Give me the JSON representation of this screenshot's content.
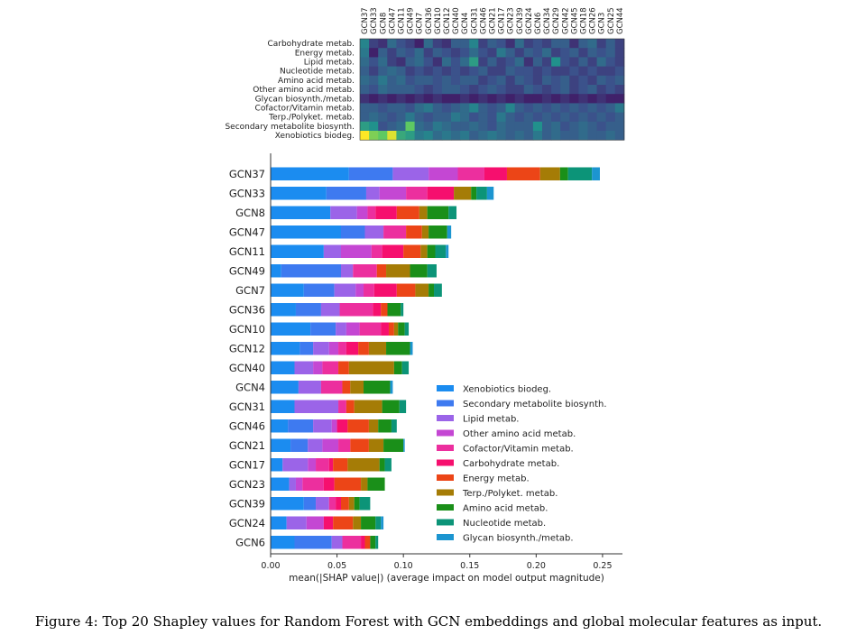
{
  "caption": "Figure 4: Top 20 Shapley values for Random Forest with GCN embeddings and global molecular features as input.",
  "heatmap": {
    "rows": [
      "Carbohydrate metab.",
      "Energy metab.",
      "Lipid metab.",
      "Nucleotide metab.",
      "Amino acid metab.",
      "Other amino acid metab.",
      "Glycan biosynth./metab.",
      "Cofactor/Vitamin metab.",
      "Terp./Polyket. metab.",
      "Secondary metabolite biosynth.",
      "Xenobiotics biodeg."
    ],
    "columns": [
      "GCN37",
      "GCN33",
      "GCN8",
      "GCN47",
      "GCN11",
      "GCN49",
      "GCN7",
      "GCN36",
      "GCN10",
      "GCN12",
      "GCN40",
      "GCN4",
      "GCN31",
      "GCN46",
      "GCN21",
      "GCN17",
      "GCN23",
      "GCN39",
      "GCN24",
      "GCN6",
      "GCN34",
      "GCN29",
      "GCN42",
      "GCN45",
      "GCN18",
      "GCN26",
      "GCN3",
      "GCN25",
      "GCN44"
    ],
    "colormap": [
      "#440154",
      "#3b528b",
      "#21918c",
      "#5ec962",
      "#fde725"
    ],
    "values": [
      [
        0.45,
        0.2,
        0.15,
        0.35,
        0.25,
        0.2,
        0.1,
        0.35,
        0.2,
        0.15,
        0.3,
        0.3,
        0.45,
        0.2,
        0.3,
        0.25,
        0.15,
        0.35,
        0.2,
        0.25,
        0.2,
        0.3,
        0.3,
        0.15,
        0.3,
        0.35,
        0.2,
        0.3,
        0.2
      ],
      [
        0.4,
        0.1,
        0.3,
        0.2,
        0.3,
        0.25,
        0.35,
        0.2,
        0.3,
        0.25,
        0.2,
        0.25,
        0.35,
        0.25,
        0.2,
        0.4,
        0.3,
        0.2,
        0.3,
        0.25,
        0.35,
        0.2,
        0.25,
        0.3,
        0.2,
        0.3,
        0.25,
        0.3,
        0.2
      ],
      [
        0.35,
        0.25,
        0.35,
        0.2,
        0.15,
        0.3,
        0.35,
        0.25,
        0.15,
        0.35,
        0.25,
        0.35,
        0.55,
        0.2,
        0.3,
        0.2,
        0.25,
        0.35,
        0.15,
        0.3,
        0.2,
        0.5,
        0.25,
        0.2,
        0.3,
        0.2,
        0.35,
        0.25,
        0.2
      ],
      [
        0.3,
        0.2,
        0.3,
        0.35,
        0.3,
        0.2,
        0.25,
        0.2,
        0.25,
        0.2,
        0.25,
        0.2,
        0.25,
        0.3,
        0.2,
        0.2,
        0.3,
        0.25,
        0.25,
        0.2,
        0.25,
        0.2,
        0.2,
        0.25,
        0.2,
        0.25,
        0.2,
        0.2,
        0.25
      ],
      [
        0.35,
        0.3,
        0.4,
        0.3,
        0.35,
        0.25,
        0.3,
        0.3,
        0.25,
        0.3,
        0.25,
        0.3,
        0.3,
        0.2,
        0.25,
        0.3,
        0.2,
        0.3,
        0.25,
        0.2,
        0.3,
        0.25,
        0.3,
        0.2,
        0.25,
        0.2,
        0.3,
        0.25,
        0.3
      ],
      [
        0.3,
        0.25,
        0.35,
        0.3,
        0.3,
        0.3,
        0.25,
        0.2,
        0.25,
        0.3,
        0.3,
        0.25,
        0.2,
        0.25,
        0.3,
        0.25,
        0.2,
        0.2,
        0.3,
        0.25,
        0.2,
        0.25,
        0.3,
        0.2,
        0.25,
        0.3,
        0.2,
        0.25,
        0.2
      ],
      [
        0.15,
        0.1,
        0.15,
        0.1,
        0.15,
        0.1,
        0.15,
        0.1,
        0.15,
        0.1,
        0.1,
        0.15,
        0.1,
        0.15,
        0.1,
        0.15,
        0.1,
        0.15,
        0.1,
        0.1,
        0.15,
        0.1,
        0.15,
        0.1,
        0.15,
        0.1,
        0.15,
        0.1,
        0.1
      ],
      [
        0.3,
        0.3,
        0.25,
        0.3,
        0.3,
        0.25,
        0.35,
        0.4,
        0.3,
        0.25,
        0.3,
        0.35,
        0.45,
        0.3,
        0.25,
        0.3,
        0.45,
        0.3,
        0.25,
        0.3,
        0.25,
        0.3,
        0.25,
        0.3,
        0.25,
        0.3,
        0.25,
        0.3,
        0.4
      ],
      [
        0.3,
        0.35,
        0.3,
        0.25,
        0.3,
        0.4,
        0.3,
        0.25,
        0.3,
        0.3,
        0.4,
        0.35,
        0.25,
        0.3,
        0.25,
        0.4,
        0.3,
        0.25,
        0.3,
        0.25,
        0.3,
        0.25,
        0.3,
        0.25,
        0.3,
        0.25,
        0.3,
        0.25,
        0.3
      ],
      [
        0.55,
        0.5,
        0.25,
        0.3,
        0.35,
        0.75,
        0.35,
        0.3,
        0.4,
        0.35,
        0.3,
        0.3,
        0.35,
        0.3,
        0.25,
        0.35,
        0.3,
        0.3,
        0.3,
        0.5,
        0.3,
        0.35,
        0.25,
        0.3,
        0.35,
        0.3,
        0.25,
        0.3,
        0.3
      ],
      [
        1.0,
        0.8,
        0.75,
        0.95,
        0.6,
        0.55,
        0.4,
        0.45,
        0.35,
        0.4,
        0.35,
        0.4,
        0.3,
        0.35,
        0.4,
        0.35,
        0.3,
        0.35,
        0.3,
        0.4,
        0.3,
        0.35,
        0.3,
        0.3,
        0.35,
        0.3,
        0.3,
        0.35,
        0.3
      ]
    ]
  },
  "chart_data": {
    "type": "bar",
    "orientation": "horizontal",
    "stacked": true,
    "categories": [
      "GCN37",
      "GCN33",
      "GCN8",
      "GCN47",
      "GCN11",
      "GCN49",
      "GCN7",
      "GCN36",
      "GCN10",
      "GCN12",
      "GCN40",
      "GCN4",
      "GCN31",
      "GCN46",
      "GCN21",
      "GCN17",
      "GCN23",
      "GCN39",
      "GCN24",
      "GCN6"
    ],
    "series": [
      {
        "name": "Xenobiotics biodeg.",
        "color": "#1b8cf0",
        "values": [
          0.059,
          0.042,
          0.045,
          0.053,
          0.04,
          0.008,
          0.025,
          0.019,
          0.03,
          0.022,
          0.018,
          0.021,
          0.018,
          0.013,
          0.015,
          0.009,
          0.014,
          0.025,
          0.012,
          0.018
        ]
      },
      {
        "name": "Secondary metabolite biosynth.",
        "color": "#3e7af0",
        "values": [
          0.033,
          0.03,
          0.0,
          0.018,
          0.0,
          0.045,
          0.023,
          0.019,
          0.019,
          0.01,
          0.0,
          0.0,
          0.0,
          0.019,
          0.013,
          0.0,
          0.0,
          0.009,
          0.0,
          0.028
        ]
      },
      {
        "name": "Lipid metab.",
        "color": "#9b64e8",
        "values": [
          0.027,
          0.01,
          0.02,
          0.014,
          0.013,
          0.009,
          0.016,
          0.014,
          0.008,
          0.012,
          0.014,
          0.017,
          0.033,
          0.014,
          0.011,
          0.019,
          0.005,
          0.01,
          0.015,
          0.008
        ]
      },
      {
        "name": "Other amino acid metab.",
        "color": "#c447d3",
        "values": [
          0.022,
          0.02,
          0.008,
          0.0,
          0.023,
          0.0,
          0.006,
          0.0,
          0.01,
          0.007,
          0.007,
          0.0,
          0.0,
          0.004,
          0.012,
          0.006,
          0.005,
          0.0,
          0.013,
          0.0
        ]
      },
      {
        "name": "Cofactor/Vitamin metab.",
        "color": "#ec2f9e",
        "values": [
          0.02,
          0.016,
          0.006,
          0.017,
          0.008,
          0.018,
          0.008,
          0.025,
          0.016,
          0.006,
          0.012,
          0.016,
          0.006,
          0.0,
          0.009,
          0.01,
          0.016,
          0.005,
          0.0,
          0.014
        ]
      },
      {
        "name": "Carbohydrate metab.",
        "color": "#f60f6e",
        "values": [
          0.017,
          0.02,
          0.016,
          0.0,
          0.016,
          0.0,
          0.017,
          0.006,
          0.006,
          0.009,
          0.0,
          0.0,
          0.0,
          0.008,
          0.0,
          0.003,
          0.008,
          0.004,
          0.007,
          0.003
        ]
      },
      {
        "name": "Energy metab.",
        "color": "#ec4517",
        "values": [
          0.025,
          0.0,
          0.017,
          0.012,
          0.013,
          0.007,
          0.014,
          0.005,
          0.004,
          0.008,
          0.008,
          0.006,
          0.006,
          0.016,
          0.014,
          0.011,
          0.02,
          0.006,
          0.015,
          0.004
        ]
      },
      {
        "name": "Terp./Polyket. metab.",
        "color": "#a57c06",
        "values": [
          0.015,
          0.013,
          0.006,
          0.005,
          0.005,
          0.018,
          0.01,
          0.0,
          0.003,
          0.013,
          0.034,
          0.01,
          0.021,
          0.007,
          0.011,
          0.024,
          0.005,
          0.004,
          0.006,
          0.0
        ]
      },
      {
        "name": "Amino acid metab.",
        "color": "#1a8f19",
        "values": [
          0.006,
          0.004,
          0.016,
          0.014,
          0.006,
          0.013,
          0.004,
          0.01,
          0.005,
          0.018,
          0.006,
          0.02,
          0.013,
          0.01,
          0.015,
          0.004,
          0.013,
          0.004,
          0.011,
          0.004
        ]
      },
      {
        "name": "Nucleotide metab.",
        "color": "#0c9478",
        "values": [
          0.018,
          0.008,
          0.006,
          0.0,
          0.008,
          0.007,
          0.006,
          0.002,
          0.003,
          0.0,
          0.005,
          0.0,
          0.005,
          0.004,
          0.0,
          0.005,
          0.0,
          0.008,
          0.004,
          0.002
        ]
      },
      {
        "name": "Glycan biosynth./metab.",
        "color": "#1c95d0",
        "values": [
          0.006,
          0.005,
          0.0,
          0.003,
          0.002,
          0.0,
          0.0,
          0.0,
          0.0,
          0.002,
          0.0,
          0.002,
          0.0,
          0.0,
          0.001,
          0.0,
          0.0,
          0.0,
          0.002,
          0.0
        ]
      }
    ],
    "xlabel": "mean(|SHAP value|) (average impact on model output magnitude)",
    "xlim": [
      0,
      0.265
    ],
    "xticks": [
      "0.00",
      "0.05",
      "0.10",
      "0.15",
      "0.20",
      "0.25"
    ],
    "legend": "lower-right",
    "legend_order": [
      "Xenobiotics biodeg.",
      "Secondary metabolite biosynth.",
      "Lipid metab.",
      "Other amino acid metab.",
      "Cofactor/Vitamin metab.",
      "Carbohydrate metab.",
      "Energy metab.",
      "Terp./Polyket. metab.",
      "Amino acid metab.",
      "Nucleotide metab.",
      "Glycan biosynth./metab."
    ],
    "grid": false
  }
}
